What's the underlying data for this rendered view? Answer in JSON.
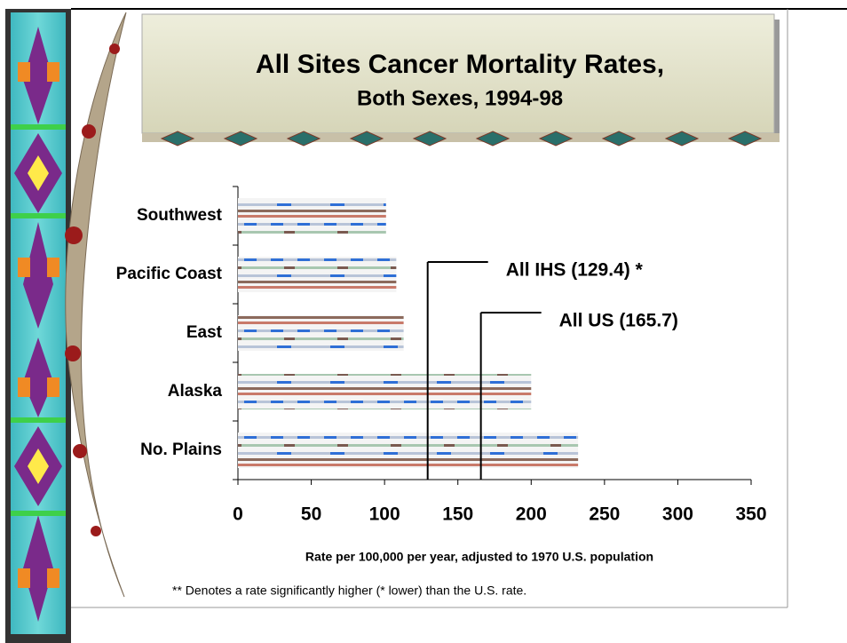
{
  "chart_data": {
    "type": "bar",
    "orientation": "horizontal",
    "title": "All Sites Cancer Mortality Rates,",
    "subtitle": "Both Sexes, 1994-98",
    "x_label": "Rate per 100,000 per year, adjusted to 1970 U.S. population",
    "footnote": "** Denotes a rate significantly higher (* lower) than the U.S. rate.",
    "categories": [
      "Southwest",
      "Pacific Coast",
      "East",
      "Alaska",
      "No. Plains"
    ],
    "values": [
      101,
      108,
      113,
      200,
      232
    ],
    "xlim": [
      0,
      350
    ],
    "xticks": [
      0,
      50,
      100,
      150,
      200,
      250,
      300,
      350
    ],
    "reference_lines": [
      {
        "label": "All IHS (129.4) *",
        "value": 129.4
      },
      {
        "label": "All US (165.7)",
        "value": 165.7
      }
    ]
  }
}
